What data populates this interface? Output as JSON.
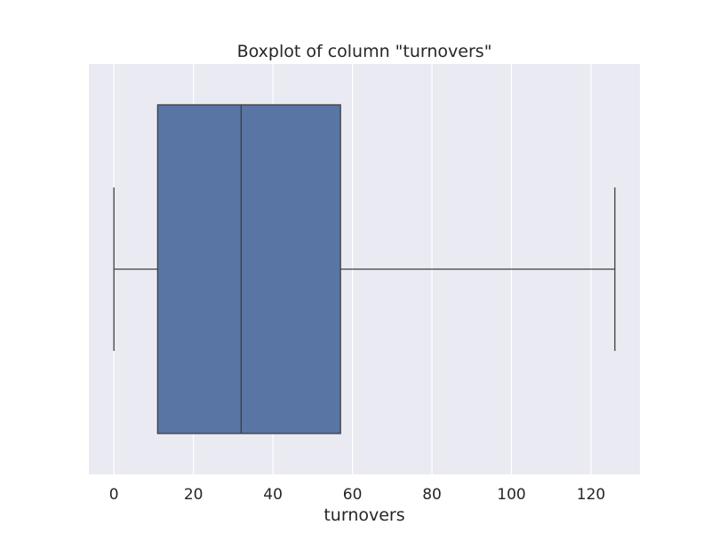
{
  "chart_data": {
    "type": "boxplot",
    "title": "Boxplot of column \"turnovers\"",
    "xlabel": "turnovers",
    "ylabel": "",
    "orientation": "horizontal",
    "xlim": [
      -6.3,
      132.3
    ],
    "xticks": [
      0,
      20,
      40,
      60,
      80,
      100,
      120
    ],
    "xtick_labels": [
      "0",
      "20",
      "40",
      "60",
      "80",
      "100",
      "120"
    ],
    "grid": true,
    "series": [
      {
        "whisker_low": 0,
        "q1": 11,
        "median": 32,
        "q3": 57,
        "whisker_high": 126
      }
    ],
    "colors": {
      "plot_background": "#eaeaf2",
      "grid": "#ffffff",
      "box_fill": "#5875a4",
      "line": "#3f3f3f",
      "text": "#262626"
    }
  }
}
